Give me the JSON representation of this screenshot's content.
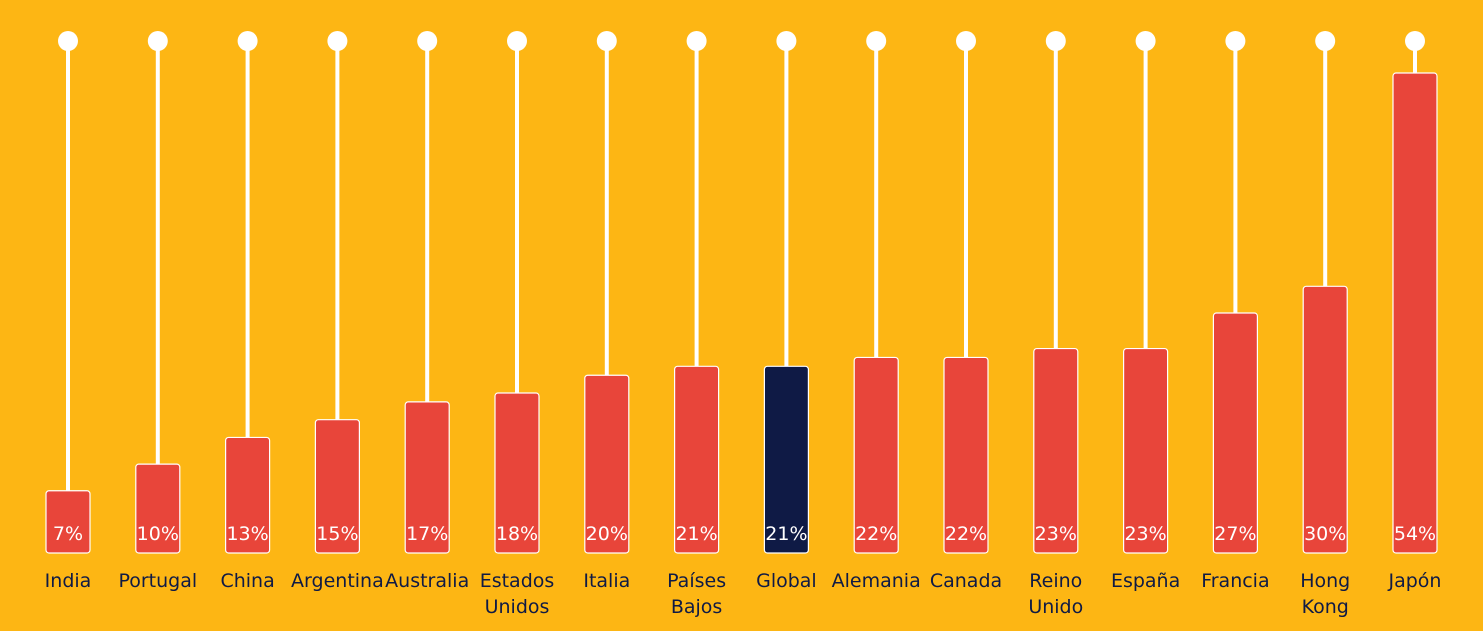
{
  "chart_data": {
    "type": "bar",
    "categories": [
      "India",
      "Portugal",
      "China",
      "Argentina",
      "Australia",
      "Estados Unidos",
      "Italia",
      "Países Bajos",
      "Global",
      "Alemania",
      "Canada",
      "Reino Unido",
      "España",
      "Francia",
      "Hong Kong",
      "Japón"
    ],
    "values": [
      7,
      10,
      13,
      15,
      17,
      18,
      20,
      21,
      21,
      22,
      22,
      23,
      23,
      27,
      30,
      54
    ],
    "data_labels": [
      "7%",
      "10%",
      "13%",
      "15%",
      "17%",
      "18%",
      "20%",
      "21%",
      "21%",
      "22%",
      "22%",
      "23%",
      "23%",
      "27%",
      "30%",
      "54%"
    ],
    "highlight_category": "Global",
    "ylim": [
      0,
      54
    ],
    "grid": false,
    "legend": "none",
    "colors": {
      "background": "#FDB614",
      "bar": "#E8453A",
      "highlight": "#0F1A45",
      "stem": "#FFFFFF",
      "label": "#0F1A45"
    }
  }
}
